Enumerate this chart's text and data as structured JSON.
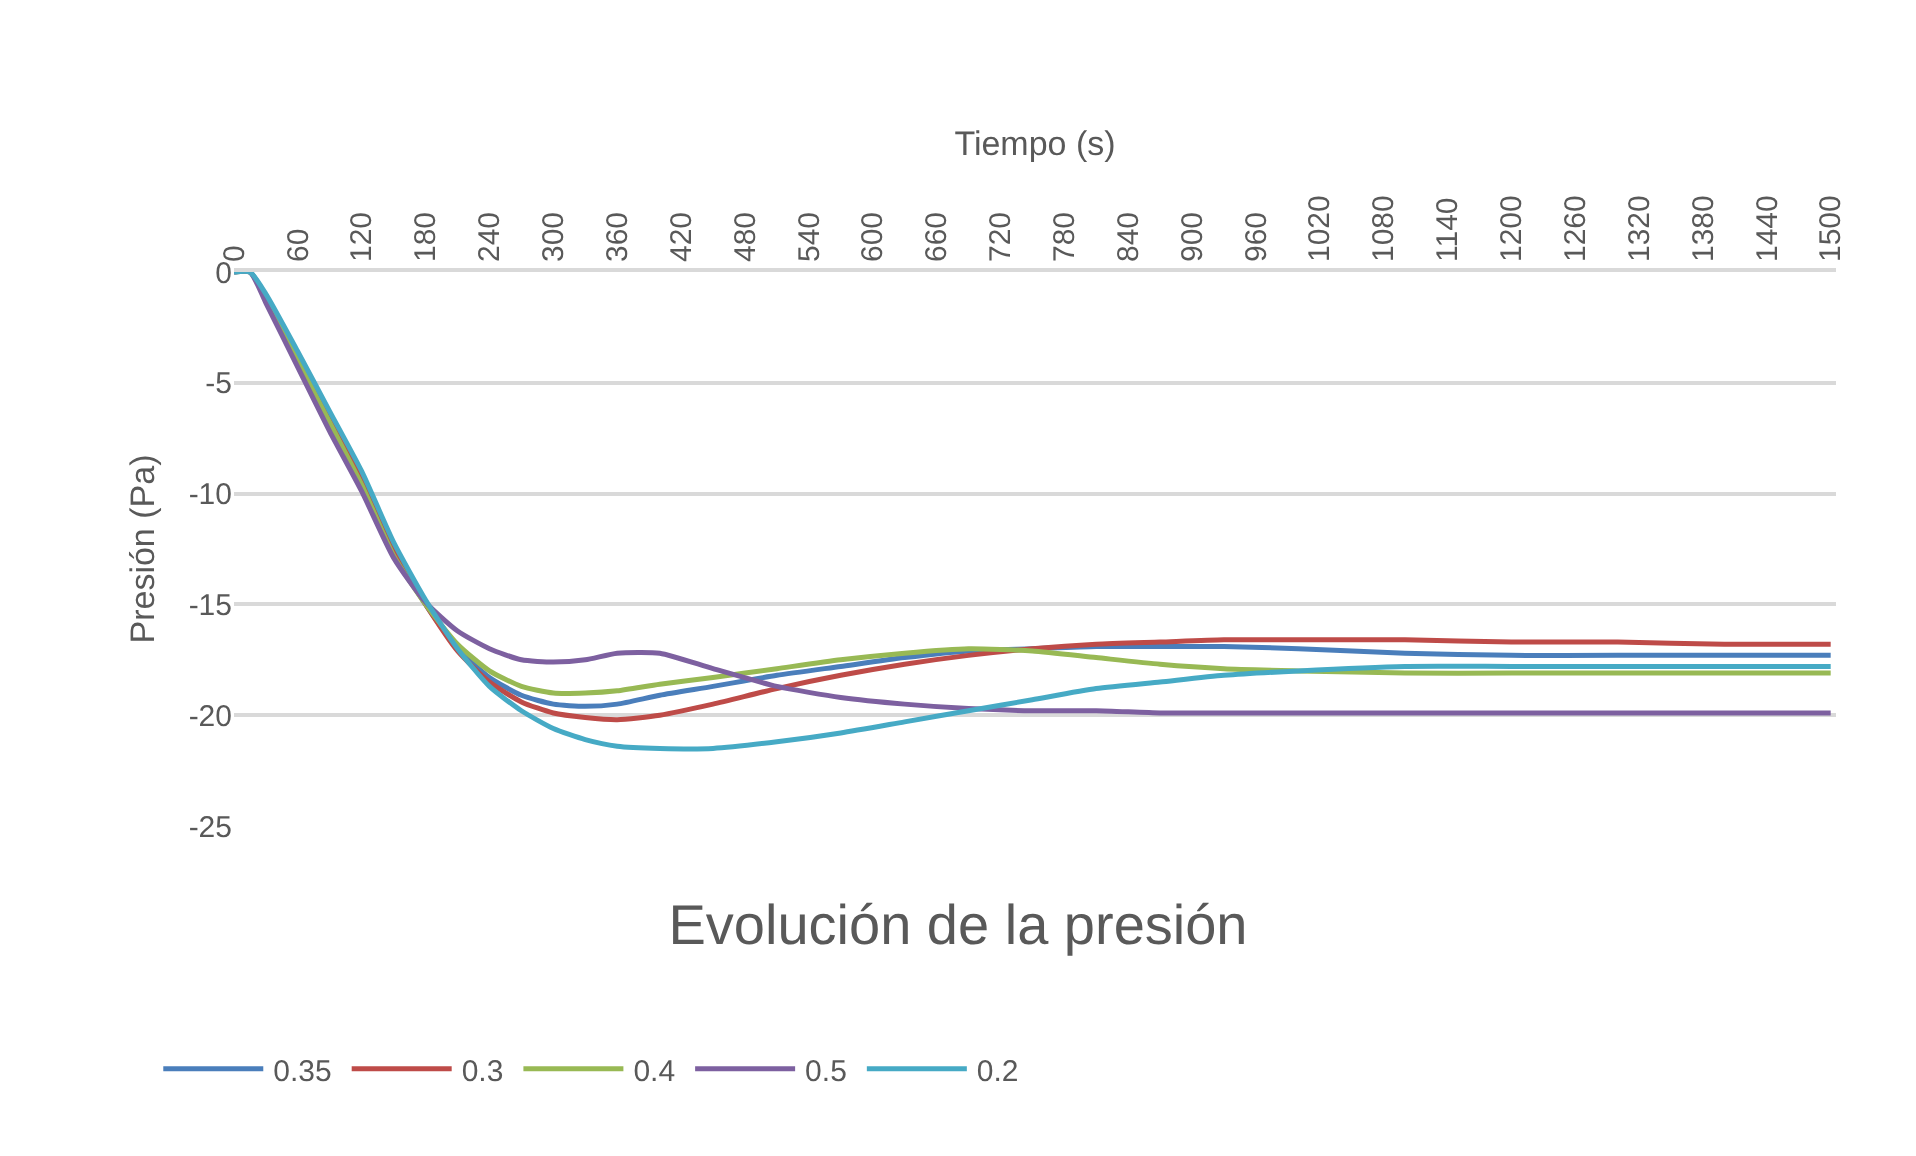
{
  "chart_data": {
    "type": "line",
    "title": "Evolución de la presión",
    "xlabel": "Tiempo (s)",
    "ylabel": "Presión (Pa)",
    "x": [
      0,
      15,
      30,
      60,
      90,
      120,
      150,
      180,
      210,
      240,
      270,
      300,
      330,
      360,
      400,
      450,
      510,
      570,
      630,
      690,
      750,
      810,
      870,
      930,
      1000,
      1100,
      1200,
      1300,
      1400,
      1500
    ],
    "series": [
      {
        "name": "0.35",
        "color": "#4a7ebb",
        "values": [
          0,
          0,
          -1.1,
          -3.8,
          -6.6,
          -9.3,
          -12.5,
          -15.0,
          -17.0,
          -18.3,
          -19.1,
          -19.5,
          -19.6,
          -19.5,
          -19.1,
          -18.7,
          -18.2,
          -17.8,
          -17.4,
          -17.1,
          -17.0,
          -16.9,
          -16.9,
          -16.9,
          -17.0,
          -17.2,
          -17.3,
          -17.3,
          -17.3,
          -17.3
        ]
      },
      {
        "name": "0.3",
        "color": "#be4b48",
        "values": [
          null,
          null,
          null,
          -3.9,
          -6.7,
          -9.4,
          -12.6,
          -15.0,
          -17.1,
          -18.5,
          -19.4,
          -19.9,
          -20.1,
          -20.2,
          -20.0,
          -19.5,
          -18.8,
          -18.2,
          -17.7,
          -17.3,
          -17.0,
          -16.8,
          -16.7,
          -16.6,
          -16.6,
          -16.6,
          -16.7,
          -16.7,
          -16.8,
          -16.8
        ]
      },
      {
        "name": "0.4",
        "color": "#98b954",
        "values": [
          0,
          0,
          -1.2,
          -4.0,
          -6.8,
          -9.6,
          -12.8,
          -15.0,
          -16.8,
          -18.0,
          -18.7,
          -19.0,
          -19.0,
          -18.9,
          -18.6,
          -18.3,
          -17.9,
          -17.5,
          -17.2,
          -17.0,
          -17.1,
          -17.4,
          -17.7,
          -17.9,
          -18.0,
          -18.1,
          -18.1,
          -18.1,
          -18.1,
          -18.1
        ]
      },
      {
        "name": "0.5",
        "color": "#7d60a0",
        "values": [
          0,
          0,
          -1.4,
          -4.3,
          -7.2,
          -9.9,
          -12.9,
          -14.9,
          -16.2,
          -17.0,
          -17.5,
          -17.6,
          -17.5,
          -17.2,
          -17.2,
          -17.9,
          -18.7,
          -19.2,
          -19.5,
          -19.7,
          -19.8,
          -19.8,
          -19.9,
          -19.9,
          -19.9,
          -19.9,
          -19.9,
          -19.9,
          -19.9,
          -19.9
        ]
      },
      {
        "name": "0.2",
        "color": "#46aac5",
        "values": [
          0,
          0,
          -1.0,
          -3.6,
          -6.3,
          -9.0,
          -12.2,
          -14.8,
          -17.0,
          -18.7,
          -19.8,
          -20.6,
          -21.1,
          -21.4,
          -21.5,
          -21.5,
          -21.2,
          -20.8,
          -20.3,
          -19.8,
          -19.3,
          -18.8,
          -18.5,
          -18.2,
          -18.0,
          -17.8,
          -17.8,
          -17.8,
          -17.8,
          -17.8
        ]
      }
    ],
    "xlim": [
      0,
      1505
    ],
    "xticks": [
      0,
      60,
      120,
      180,
      240,
      300,
      360,
      420,
      480,
      540,
      600,
      660,
      720,
      780,
      840,
      900,
      960,
      1020,
      1080,
      1140,
      1200,
      1260,
      1320,
      1380,
      1440,
      1500
    ],
    "ylim": [
      -25,
      0
    ],
    "yticks": [
      0,
      -5,
      -10,
      -15,
      -20,
      -25
    ],
    "grid": "y",
    "legend": "bottom",
    "marker": "none",
    "line_style": "solid"
  }
}
